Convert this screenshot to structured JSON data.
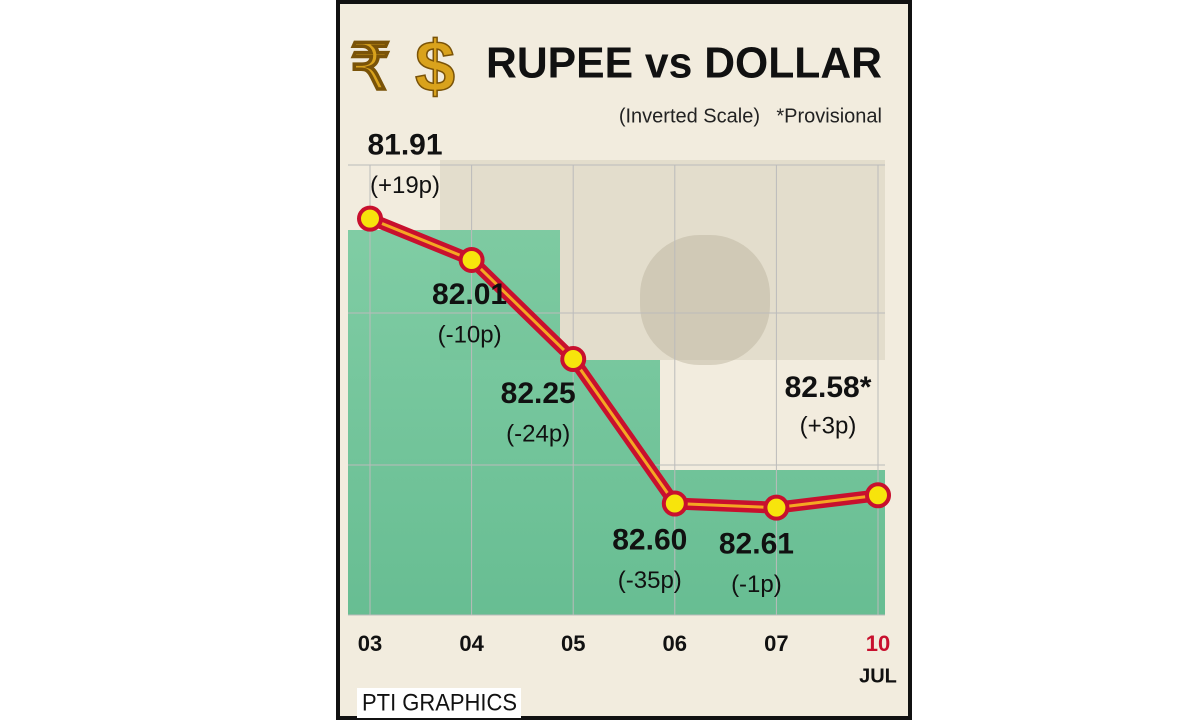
{
  "chart_data": {
    "type": "line",
    "title": "RUPEE vs DOLLAR",
    "subtitle": "(Inverted Scale)",
    "note": "*Provisional",
    "symbols": [
      "₹",
      "$"
    ],
    "categories": [
      "03",
      "04",
      "05",
      "06",
      "07",
      "10"
    ],
    "month": "JUL",
    "series": [
      {
        "name": "Rupee vs Dollar",
        "color": "#c8102e",
        "values": [
          81.91,
          82.01,
          82.25,
          82.6,
          82.61,
          82.58
        ],
        "value_labels": [
          "81.91",
          "82.01",
          "82.25",
          "82.60",
          "82.61",
          "82.58*"
        ],
        "change_labels": [
          "(+19p)",
          "(-10p)",
          "(-24p)",
          "(-35p)",
          "(-1p)",
          "(+3p)"
        ]
      }
    ],
    "ylim": [
      81.78,
      82.87
    ],
    "y_inverted": true,
    "grid": true,
    "source": "PTI GRAPHICS"
  }
}
